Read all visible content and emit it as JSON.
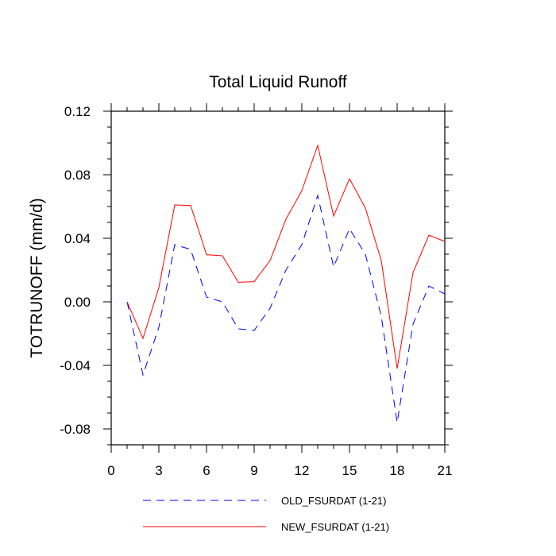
{
  "chart_data": {
    "type": "line",
    "title": "Total Liquid Runoff",
    "xlabel": "",
    "ylabel": "TOTRUNOFF  (mm/d)",
    "xlim": [
      0,
      21
    ],
    "ylim": [
      -0.09,
      0.12
    ],
    "x_ticks": [
      0,
      3,
      6,
      9,
      12,
      15,
      18,
      21
    ],
    "x_tick_labels": [
      "0",
      "3",
      "6",
      "9",
      "12",
      "15",
      "18",
      "21"
    ],
    "y_ticks": [
      -0.08,
      -0.04,
      0.0,
      0.04,
      0.08,
      0.12
    ],
    "y_tick_labels": [
      "-0.08",
      "-0.04",
      "0.00",
      "0.04",
      "0.08",
      "0.12"
    ],
    "grid": false,
    "legend_position": "bottom",
    "x": [
      1,
      2,
      3,
      4,
      5,
      6,
      7,
      8,
      9,
      10,
      11,
      12,
      13,
      14,
      15,
      16,
      17,
      18,
      19,
      20,
      21
    ],
    "series": [
      {
        "name": "OLD_FSURDAT (1-21)",
        "color": "#0000ff",
        "dash": "dashed",
        "values": [
          0.0,
          -0.046,
          -0.016,
          0.036,
          0.033,
          0.003,
          0.0,
          -0.017,
          -0.018,
          -0.004,
          0.02,
          0.036,
          0.067,
          0.022,
          0.046,
          0.03,
          -0.009,
          -0.076,
          -0.014,
          0.01,
          0.005
        ]
      },
      {
        "name": "NEW_FSURDAT (1-21)",
        "color": "#ff0000",
        "dash": "solid",
        "values": [
          0.0,
          -0.023,
          0.009,
          0.061,
          0.0607,
          0.0297,
          0.029,
          0.0123,
          0.0127,
          0.026,
          0.052,
          0.07,
          0.0985,
          0.054,
          0.0775,
          0.059,
          0.026,
          -0.042,
          0.0185,
          0.042,
          0.038
        ]
      }
    ]
  }
}
